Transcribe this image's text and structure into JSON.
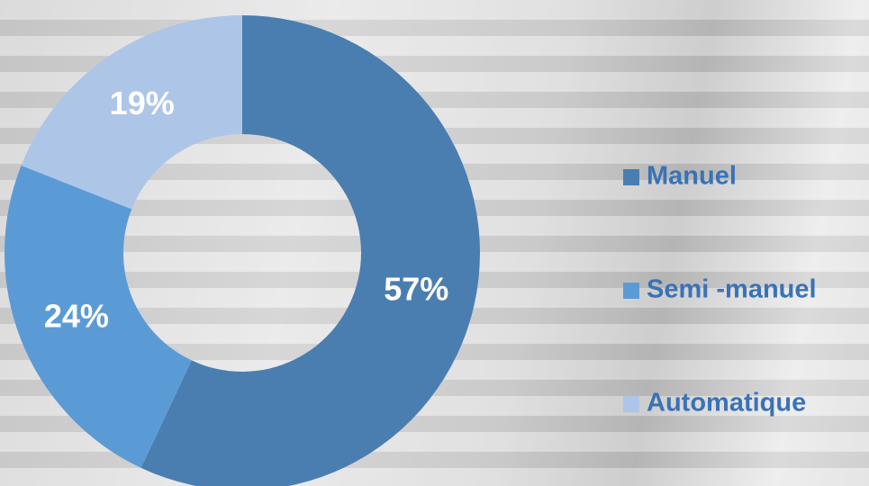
{
  "chart_data": {
    "type": "pie",
    "donut": true,
    "categories": [
      "Manuel",
      "Semi -manuel",
      "Automatique"
    ],
    "values": [
      57,
      24,
      19
    ],
    "value_labels": [
      "57%",
      "24%",
      "19%"
    ],
    "colors": [
      "#4a7eb1",
      "#5b9bd5",
      "#adc6e8"
    ],
    "legend": "right"
  }
}
